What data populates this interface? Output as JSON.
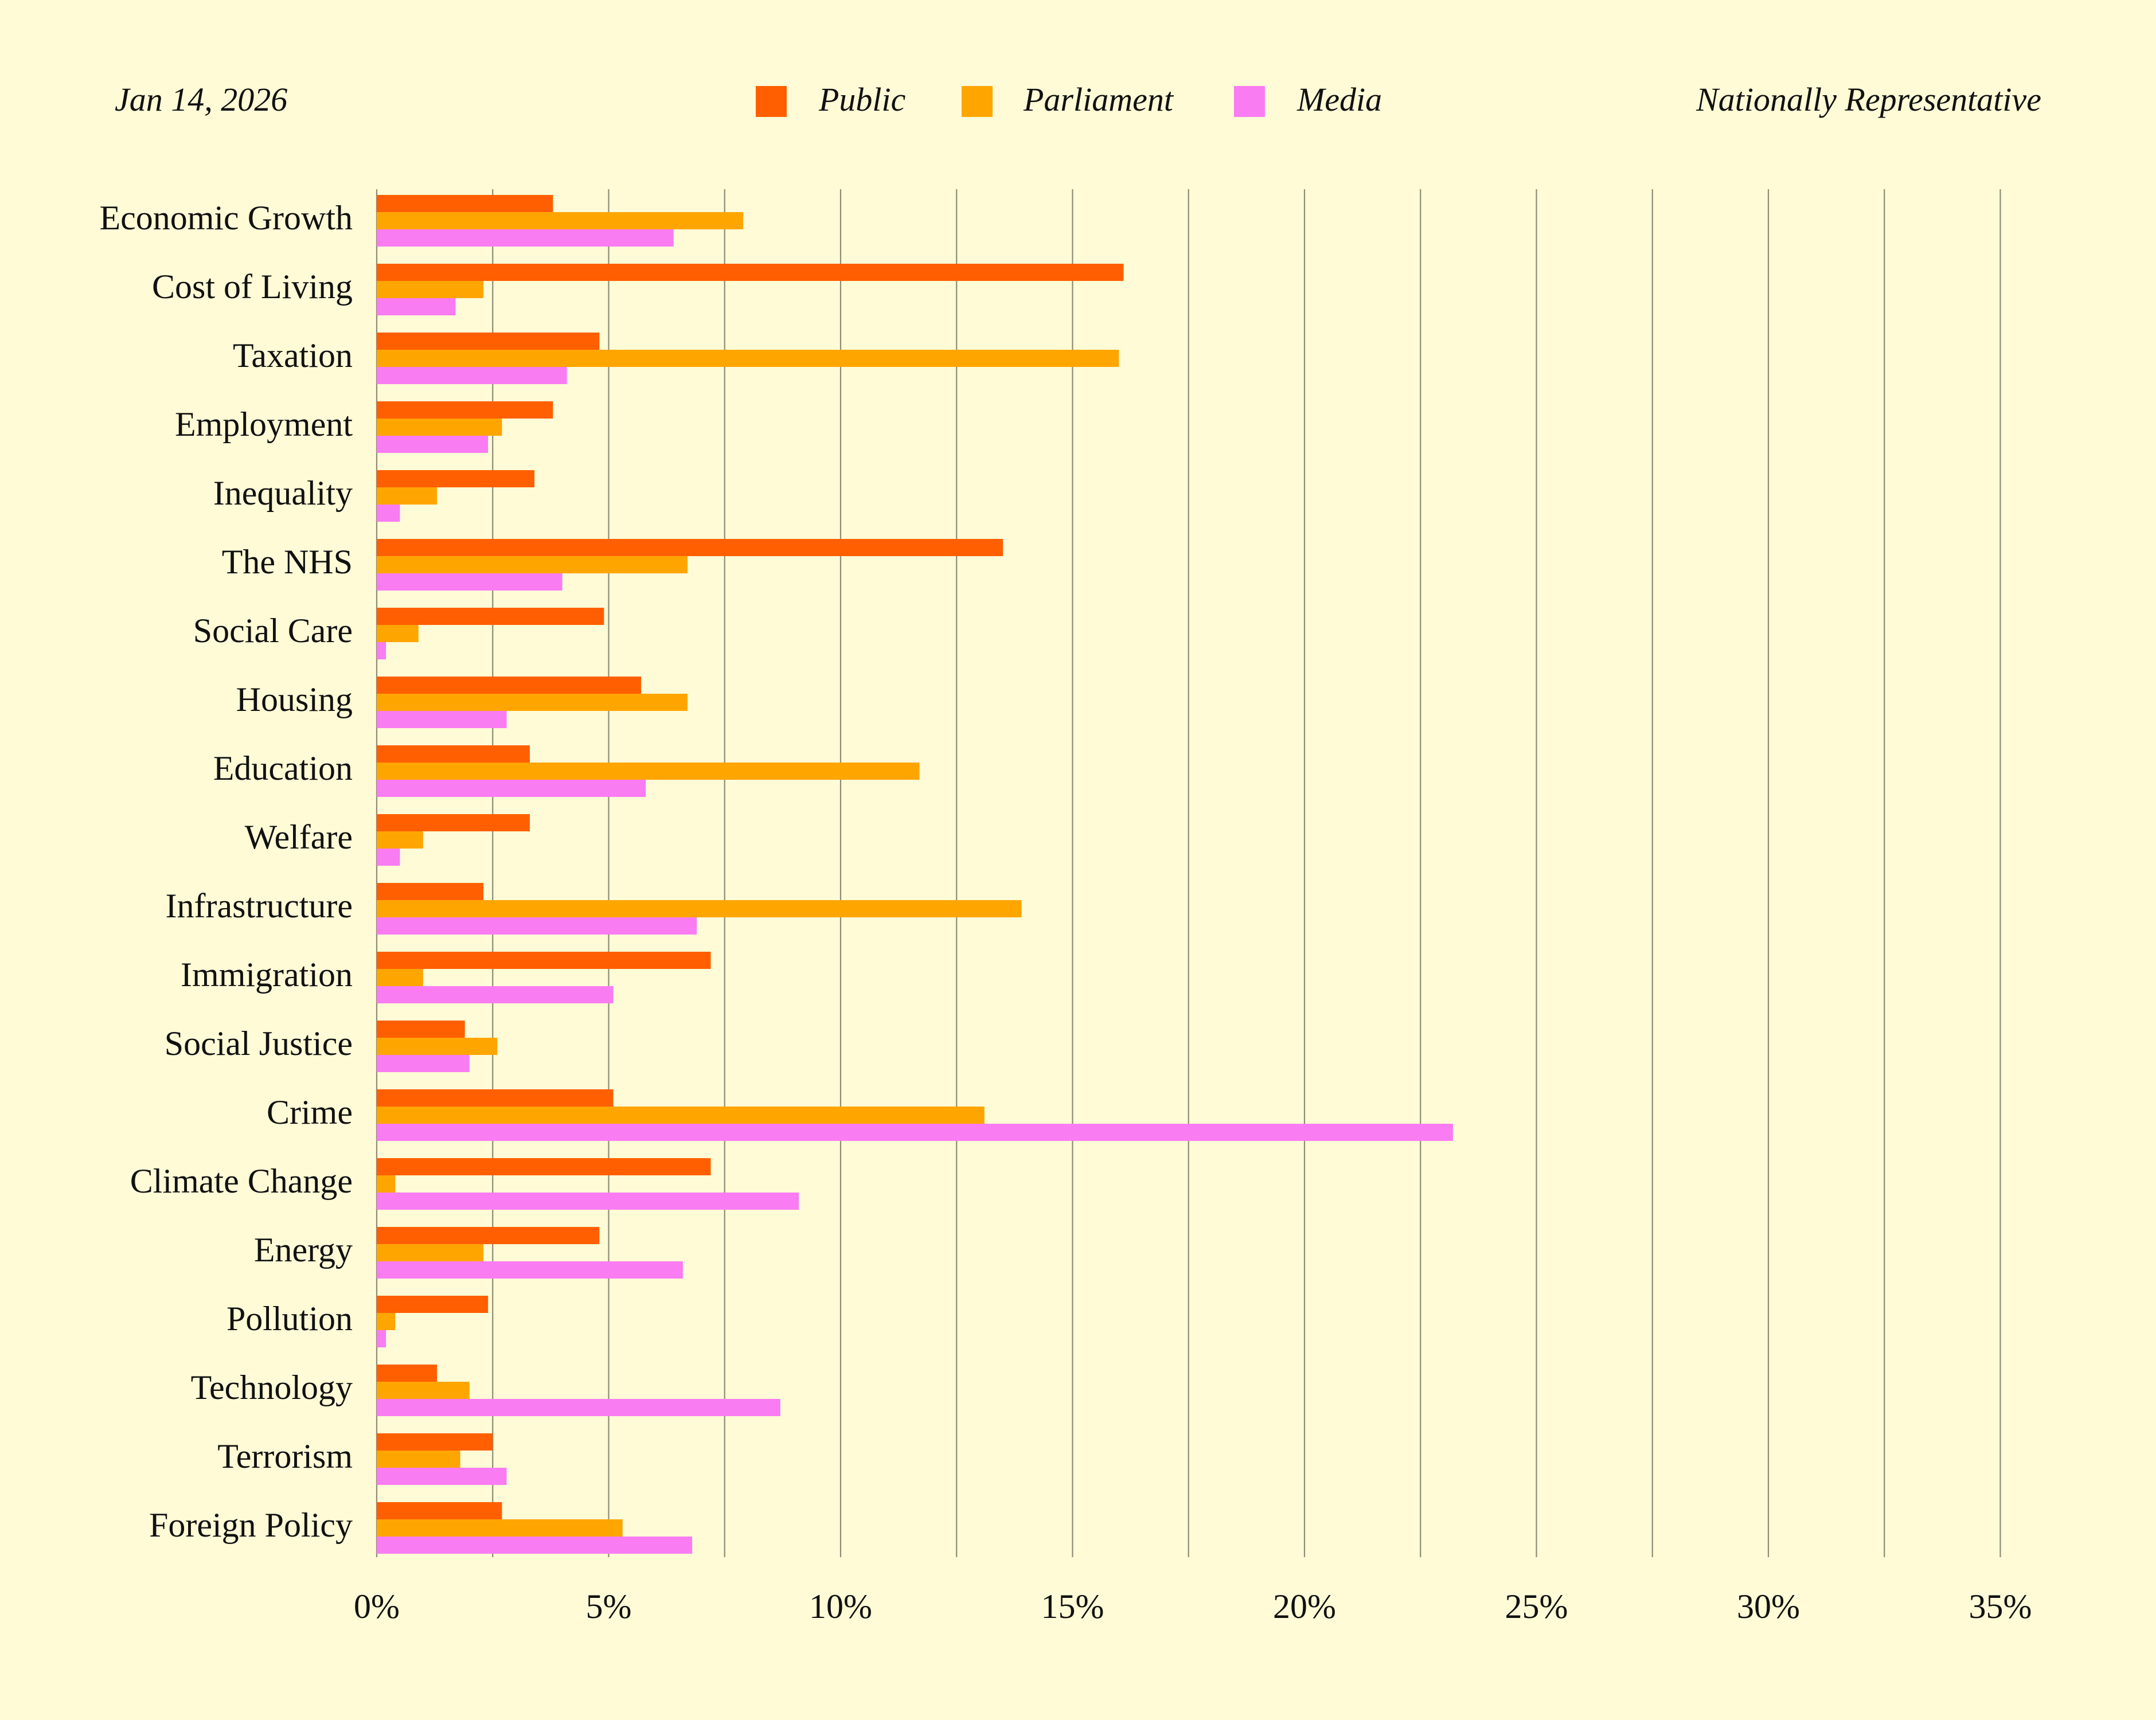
{
  "header": {
    "date": "Jan 14, 2026",
    "note": "Nationally Representative"
  },
  "colors": {
    "background": "#fefbd6",
    "grid": "#8e8c76",
    "Public": "#ff5f00",
    "Parliament": "#ffa500",
    "Media": "#f97cf2"
  },
  "chart_data": {
    "type": "bar",
    "orientation": "horizontal",
    "title": "",
    "xlabel": "",
    "ylabel": "",
    "xlim": [
      0,
      35
    ],
    "x_ticks": [
      "0%",
      "5%",
      "10%",
      "15%",
      "20%",
      "25%",
      "30%",
      "35%"
    ],
    "grid": true,
    "legend_position": "top-center",
    "categories": [
      "Economic Growth",
      "Cost of Living",
      "Taxation",
      "Employment",
      "Inequality",
      "The NHS",
      "Social Care",
      "Housing",
      "Education",
      "Welfare",
      "Infrastructure",
      "Immigration",
      "Social Justice",
      "Crime",
      "Climate Change",
      "Energy",
      "Pollution",
      "Technology",
      "Terrorism",
      "Foreign Policy"
    ],
    "series": [
      {
        "name": "Public",
        "values": [
          3.8,
          16.1,
          4.8,
          3.8,
          3.4,
          13.5,
          4.9,
          5.7,
          3.3,
          3.3,
          2.3,
          7.2,
          1.9,
          5.1,
          7.2,
          4.8,
          2.4,
          1.3,
          2.5,
          2.7
        ]
      },
      {
        "name": "Parliament",
        "values": [
          7.9,
          2.3,
          16.0,
          2.7,
          1.3,
          6.7,
          0.9,
          6.7,
          11.7,
          1.0,
          13.9,
          1.0,
          2.6,
          13.1,
          0.4,
          2.3,
          0.4,
          2.0,
          1.8,
          5.3
        ]
      },
      {
        "name": "Media",
        "values": [
          6.4,
          1.7,
          4.1,
          2.4,
          0.5,
          4.0,
          0.2,
          2.8,
          5.8,
          0.5,
          6.9,
          5.1,
          2.0,
          23.2,
          9.1,
          6.6,
          0.2,
          8.7,
          2.8,
          6.8
        ]
      }
    ]
  }
}
